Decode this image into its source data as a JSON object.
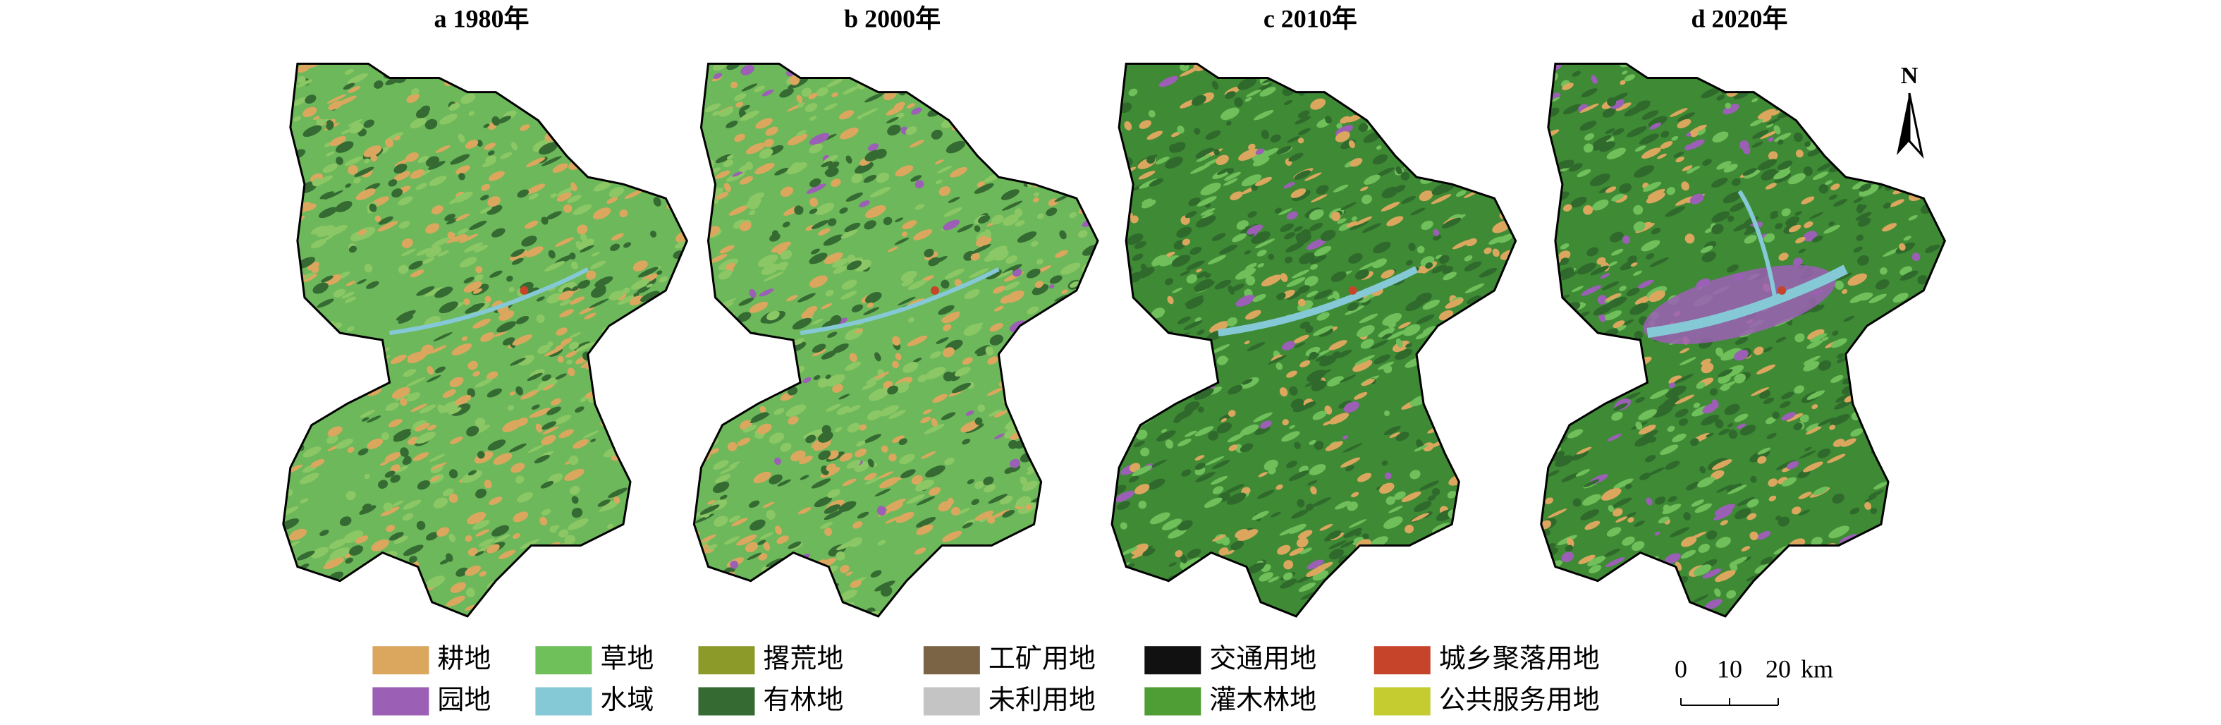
{
  "panels": [
    {
      "title": "a 1980年"
    },
    {
      "title": "b 2000年"
    },
    {
      "title": "c 2010年"
    },
    {
      "title": "d 2020年"
    }
  ],
  "legend": [
    {
      "label": "耕地",
      "color": "#dba75f"
    },
    {
      "label": "草地",
      "color": "#6fbf5a"
    },
    {
      "label": "撂荒地",
      "color": "#8c9a2a"
    },
    {
      "label": "工矿用地",
      "color": "#7a6445"
    },
    {
      "label": "交通用地",
      "color": "#111111"
    },
    {
      "label": "城乡聚落用地",
      "color": "#c5442a"
    },
    {
      "label": "园地",
      "color": "#9b5fb5"
    },
    {
      "label": "水域",
      "color": "#86c9d6"
    },
    {
      "label": "有林地",
      "color": "#356a32"
    },
    {
      "label": "未利用地",
      "color": "#c4c4c4"
    },
    {
      "label": "灌木林地",
      "color": "#4f9e35"
    },
    {
      "label": "公共服务用地",
      "color": "#c4cc30"
    }
  ],
  "scale_bar": {
    "ticks": [
      "0",
      "10",
      "20"
    ],
    "unit": "km"
  },
  "north": "N"
}
